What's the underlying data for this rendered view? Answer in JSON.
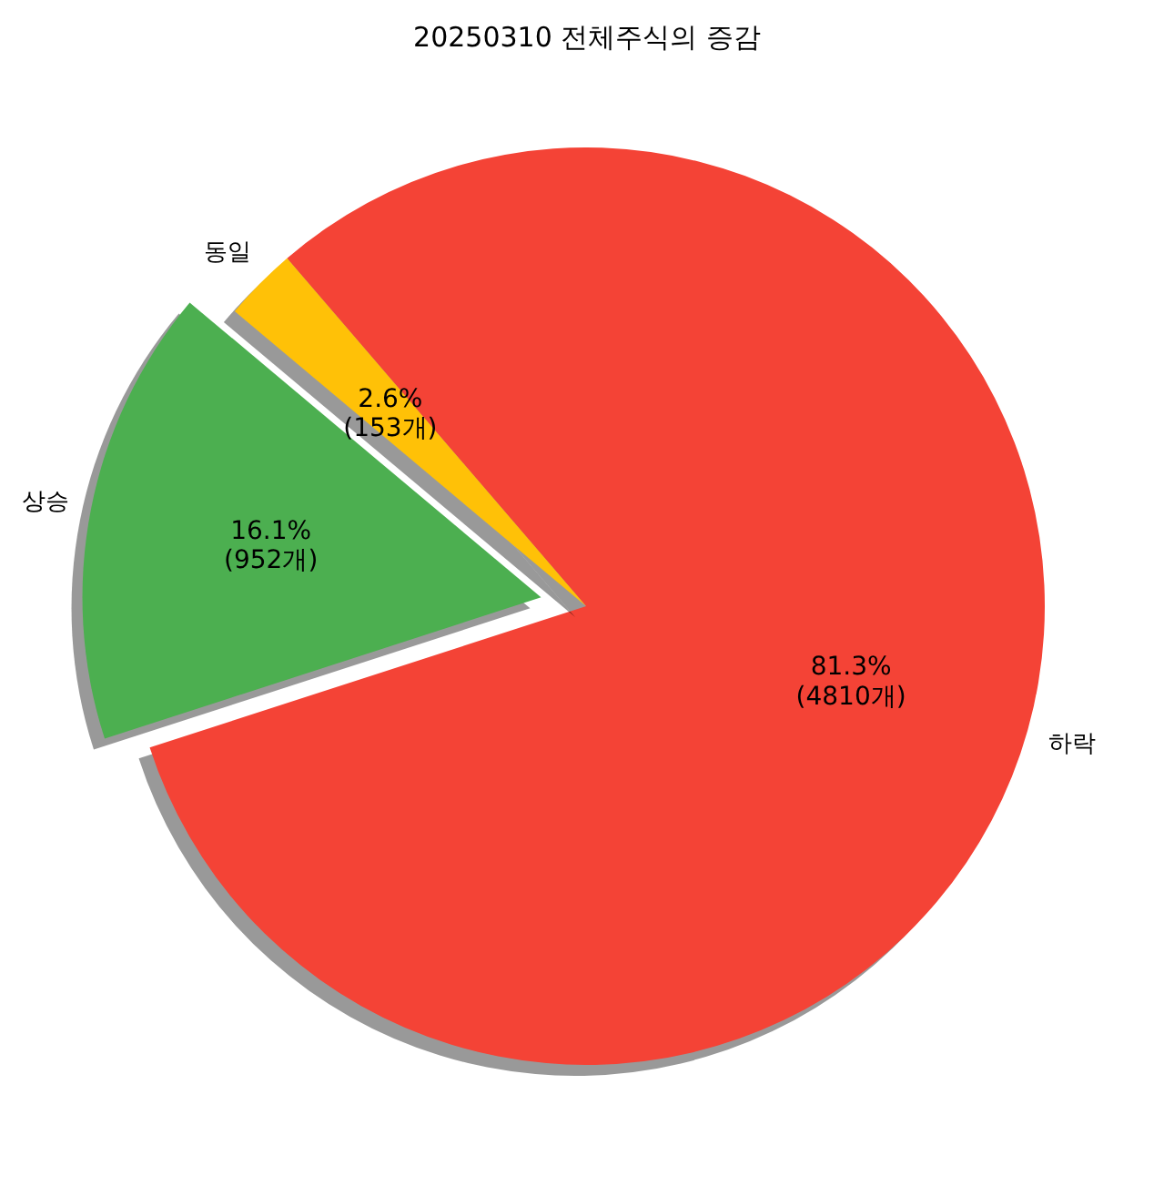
{
  "chart_data": {
    "type": "pie",
    "title": "20250310 전체주식의 증감",
    "categories": [
      "상승",
      "하락",
      "동일"
    ],
    "values": [
      952,
      4810,
      153
    ],
    "colors": [
      "#4caf50",
      "#f44336",
      "#ffc107"
    ],
    "value_labels": [
      "16.1%\n(952개)",
      "81.3%\n(4810개)",
      "2.6%\n(153개)"
    ]
  }
}
